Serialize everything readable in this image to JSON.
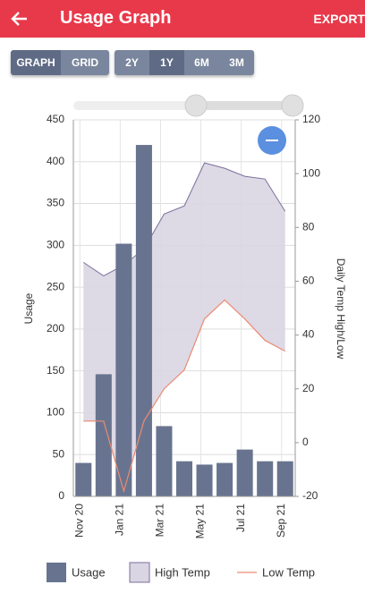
{
  "app_bar": {
    "title": "Usage Graph",
    "action": "EXPORT"
  },
  "view_toggle": [
    "GRAPH",
    "GRID"
  ],
  "range_toggle": [
    "2Y",
    "1Y",
    "6M",
    "3M"
  ],
  "chart_data": {
    "type": "bar",
    "y_label": "Usage",
    "y2_label": "Daily Temp High/Low",
    "categories": [
      "Nov 20",
      null,
      "Jan 21",
      null,
      "Mar 21",
      null,
      "May 21",
      null,
      "Jul 21",
      null,
      "Sep 21"
    ],
    "series": [
      {
        "name": "Usage",
        "type": "bar",
        "color": "#68748f",
        "values": [
          40,
          146,
          302,
          420,
          84,
          42,
          38,
          40,
          56,
          42,
          42
        ]
      },
      {
        "name": "High Temp",
        "type": "area",
        "axis": "y2",
        "color": "#d9d5e2",
        "values": [
          67,
          62,
          66,
          72,
          85,
          88,
          104,
          102,
          99,
          98,
          86
        ]
      },
      {
        "name": "Low Temp",
        "type": "line",
        "axis": "y2",
        "color": "#ec8a72",
        "values": [
          8,
          8,
          -18,
          8,
          20,
          27,
          46,
          53,
          46,
          38,
          34
        ]
      }
    ],
    "ylim": [
      0,
      450
    ],
    "yticks": [
      0,
      50,
      100,
      150,
      200,
      250,
      300,
      350,
      400,
      450
    ],
    "y2lim": [
      -20,
      120
    ],
    "y2ticks": [
      -20,
      0,
      20,
      40,
      60,
      80,
      100,
      120
    ],
    "grid": true
  }
}
